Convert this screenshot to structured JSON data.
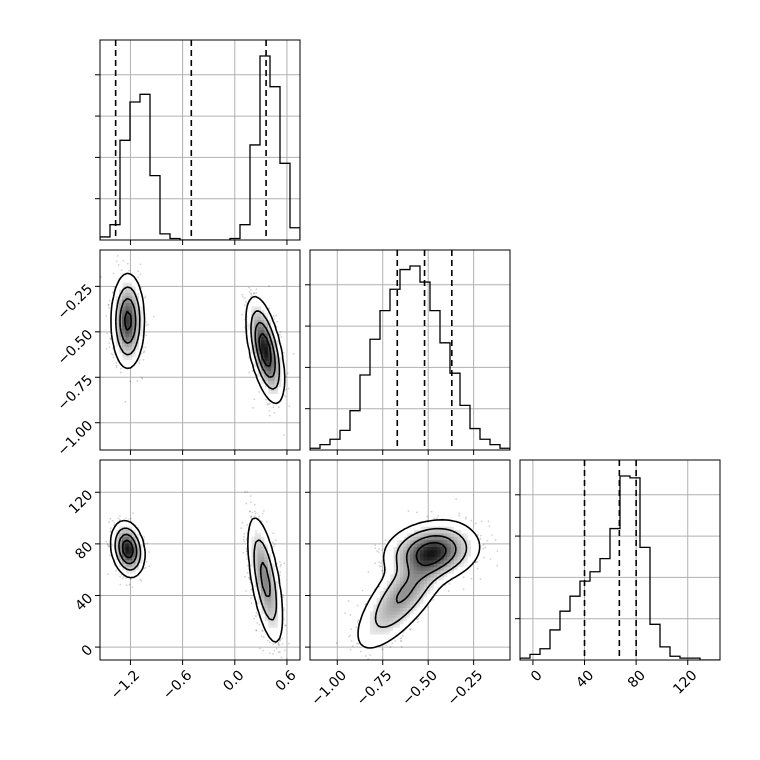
{
  "chart_data": {
    "type": "corner",
    "parameters": [
      {
        "ticks": [
          -1.2,
          -0.6,
          0.0,
          0.6
        ],
        "tick_labels": [
          "−1.2",
          "−0.6",
          "0.0",
          "0.6"
        ],
        "range": [
          -1.55,
          0.75
        ]
      },
      {
        "ticks": [
          -1.0,
          -0.75,
          -0.5,
          -0.25
        ],
        "tick_labels": [
          "−1.00",
          "−0.75",
          "−0.50",
          "−0.25"
        ],
        "range": [
          -1.15,
          -0.05
        ]
      },
      {
        "ticks": [
          0,
          40,
          80,
          120
        ],
        "tick_labels": [
          "0",
          "40",
          "80",
          "120"
        ],
        "range": [
          -10,
          145
        ]
      }
    ],
    "histograms": [
      {
        "edges": [
          -1.55,
          -1.435,
          -1.32,
          -1.205,
          -1.09,
          -0.975,
          -0.86,
          -0.745,
          -0.63,
          -0.515,
          -0.4,
          -0.285,
          -0.17,
          -0.055,
          0.06,
          0.175,
          0.29,
          0.405,
          0.52,
          0.635,
          0.75
        ],
        "counts": [
          0.02,
          0.1,
          0.65,
          0.9,
          0.95,
          0.42,
          0.04,
          0.01,
          0,
          0,
          0,
          0,
          0,
          0.01,
          0.1,
          0.62,
          1.2,
          1.0,
          0.5,
          0.08
        ],
        "quantiles": [
          -1.37,
          -0.5,
          0.36
        ]
      },
      {
        "edges": [
          -1.15,
          -1.095,
          -1.04,
          -0.985,
          -0.93,
          -0.875,
          -0.82,
          -0.765,
          -0.71,
          -0.655,
          -0.6,
          -0.545,
          -0.49,
          -0.435,
          -0.38,
          -0.325,
          -0.27,
          -0.215,
          -0.16,
          -0.105,
          -0.05
        ],
        "counts": [
          0.01,
          0.03,
          0.06,
          0.11,
          0.22,
          0.42,
          0.62,
          0.78,
          0.9,
          1.01,
          1.03,
          0.94,
          0.78,
          0.6,
          0.43,
          0.25,
          0.12,
          0.06,
          0.03,
          0.01
        ],
        "quantiles": [
          -0.67,
          -0.52,
          -0.37
        ]
      },
      {
        "edges": [
          -10,
          -2.25,
          5.5,
          13.25,
          21,
          28.75,
          36.5,
          44.25,
          52,
          59.75,
          67.5,
          75.25,
          83,
          90.75,
          98.5,
          106.25,
          114,
          121.75,
          129.5,
          137.25,
          145
        ],
        "counts": [
          0.01,
          0.03,
          0.06,
          0.16,
          0.26,
          0.34,
          0.42,
          0.47,
          0.54,
          0.7,
          0.98,
          0.97,
          0.6,
          0.19,
          0.07,
          0.02,
          0.01,
          0.01,
          0,
          0
        ],
        "quantiles": [
          40,
          67,
          80
        ]
      }
    ],
    "pairs": [
      {
        "x": 0,
        "y": 1,
        "modes": [
          {
            "mx": -1.23,
            "my": -0.44,
            "sx": 0.08,
            "sy": 0.11,
            "rho": 0.0,
            "w": 0.45
          },
          {
            "mx": 0.35,
            "my": -0.6,
            "sx": 0.09,
            "sy": 0.12,
            "rho": -0.55,
            "w": 0.55
          }
        ]
      },
      {
        "x": 0,
        "y": 2,
        "modes": [
          {
            "mx": -1.23,
            "my": 76,
            "sx": 0.08,
            "sy": 9,
            "rho": -0.2,
            "w": 0.45
          },
          {
            "mx": 0.35,
            "my": 52,
            "sx": 0.09,
            "sy": 22,
            "rho": -0.6,
            "w": 0.55
          }
        ]
      },
      {
        "x": 1,
        "y": 2,
        "modes": [
          {
            "mx": -0.48,
            "my": 74,
            "sx": 0.11,
            "sy": 10,
            "rho": 0.15,
            "w": 0.55
          },
          {
            "mx": -0.63,
            "my": 42,
            "sx": 0.12,
            "sy": 20,
            "rho": 0.75,
            "w": 0.45
          }
        ]
      }
    ],
    "xlabel": "",
    "ylabel": "",
    "title": "",
    "grid": true
  }
}
